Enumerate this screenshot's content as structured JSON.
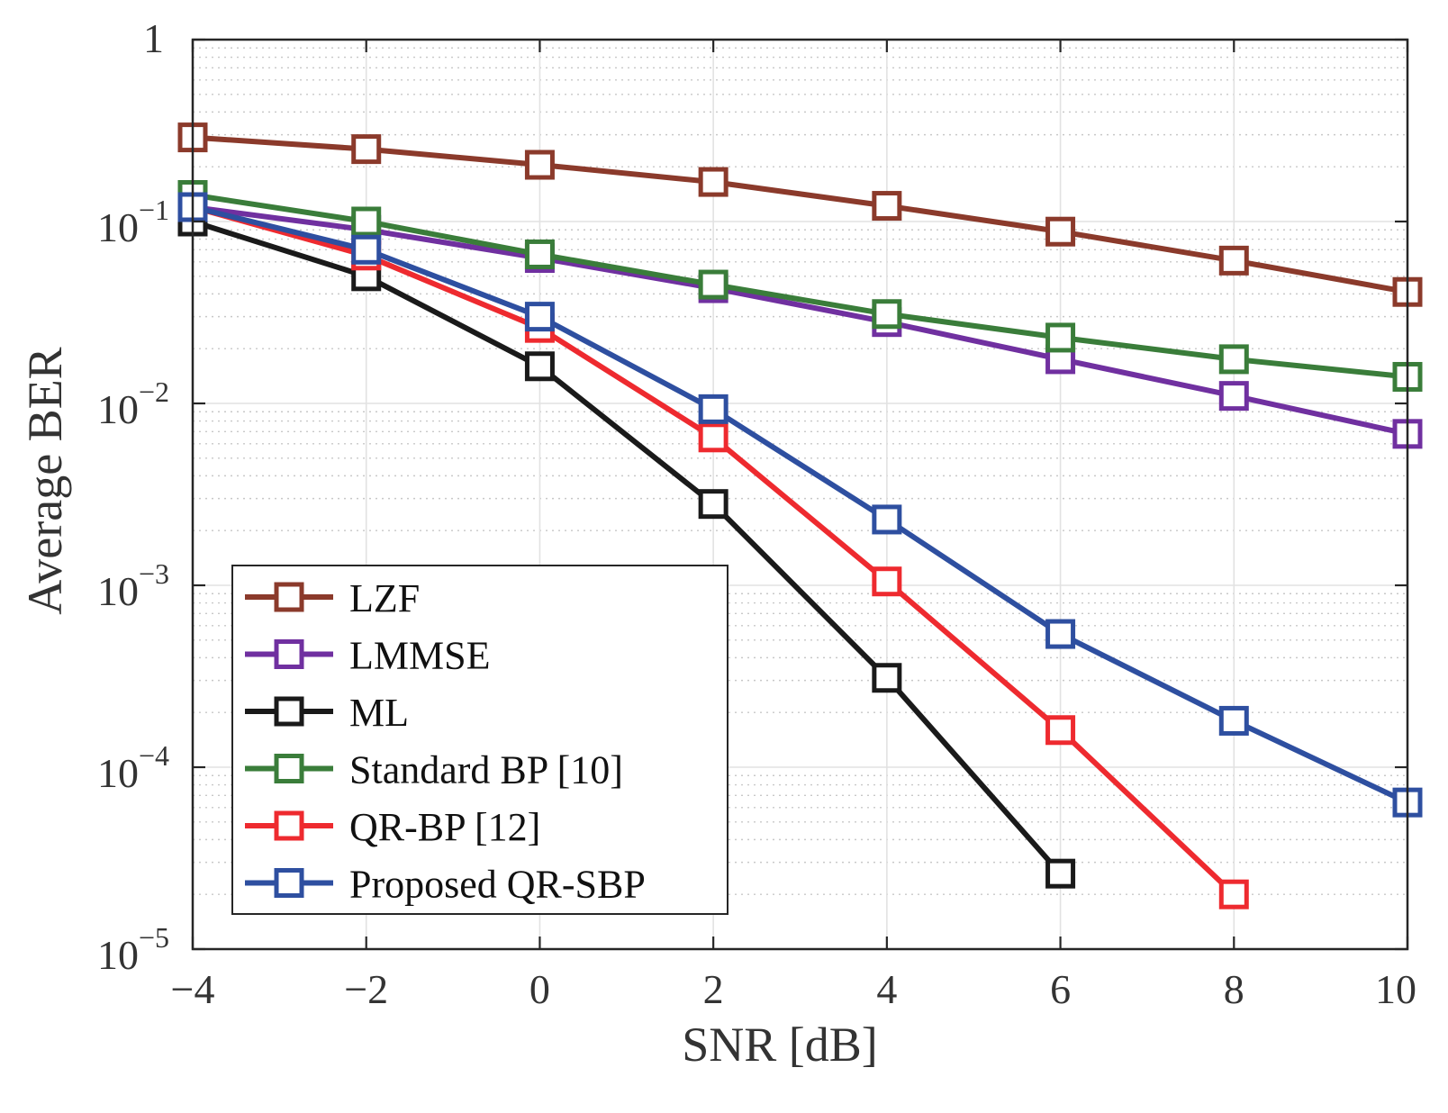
{
  "chart_data": {
    "type": "line",
    "xlabel": "SNR [dB]",
    "ylabel": "Average BER",
    "xlim": [
      -4,
      10
    ],
    "ylim": [
      1e-05,
      1
    ],
    "yscale": "log",
    "grid": true,
    "legend_position": "bottom-left",
    "x_ticks": [
      {
        "value": -4,
        "label": "−4"
      },
      {
        "value": -2,
        "label": "−2"
      },
      {
        "value": 0,
        "label": "0"
      },
      {
        "value": 2,
        "label": "2"
      },
      {
        "value": 4,
        "label": "4"
      },
      {
        "value": 6,
        "label": "6"
      },
      {
        "value": 8,
        "label": "8"
      },
      {
        "value": 10,
        "label": "10"
      }
    ],
    "y_ticks": [
      {
        "value": 1,
        "base": "1",
        "exp": ""
      },
      {
        "value": 0.1,
        "base": "10",
        "exp": "−1"
      },
      {
        "value": 0.01,
        "base": "10",
        "exp": "−2"
      },
      {
        "value": 0.001,
        "base": "10",
        "exp": "−3"
      },
      {
        "value": 0.0001,
        "base": "10",
        "exp": "−4"
      },
      {
        "value": 1e-05,
        "base": "10",
        "exp": "−5"
      }
    ],
    "series": [
      {
        "name": "LZF",
        "color": "#8B3A2B",
        "marker": "square",
        "x": [
          -4,
          -2,
          0,
          2,
          4,
          6,
          8,
          10
        ],
        "y": [
          0.29,
          0.25,
          0.205,
          0.165,
          0.122,
          0.088,
          0.061,
          0.041
        ]
      },
      {
        "name": "LMMSE",
        "color": "#7030A0",
        "marker": "square",
        "x": [
          -4,
          -2,
          0,
          2,
          4,
          6,
          8,
          10
        ],
        "y": [
          0.12,
          0.09,
          0.063,
          0.043,
          0.028,
          0.0175,
          0.011,
          0.0068
        ]
      },
      {
        "name": "ML",
        "color": "#1A1A1A",
        "marker": "square",
        "x": [
          -4,
          -2,
          0,
          2,
          4,
          6
        ],
        "y": [
          0.1,
          0.05,
          0.016,
          0.0028,
          0.00031,
          2.6e-05
        ]
      },
      {
        "name": "Standard BP [10]",
        "color": "#3A7D3A",
        "marker": "square",
        "x": [
          -4,
          -2,
          0,
          2,
          4,
          6,
          8,
          10
        ],
        "y": [
          0.14,
          0.1,
          0.066,
          0.045,
          0.031,
          0.023,
          0.0175,
          0.014
        ]
      },
      {
        "name": "QR-BP [12]",
        "color": "#EE2A2F",
        "marker": "square",
        "x": [
          -4,
          -2,
          0,
          2,
          4,
          6,
          8
        ],
        "y": [
          0.12,
          0.065,
          0.026,
          0.0065,
          0.00105,
          0.00016,
          2e-05
        ]
      },
      {
        "name": "Proposed QR-SBP",
        "color": "#2E4FA0",
        "marker": "square",
        "x": [
          -4,
          -2,
          0,
          2,
          4,
          6,
          8,
          10
        ],
        "y": [
          0.12,
          0.07,
          0.03,
          0.0093,
          0.0023,
          0.00054,
          0.00018,
          6.4e-05
        ]
      }
    ]
  }
}
